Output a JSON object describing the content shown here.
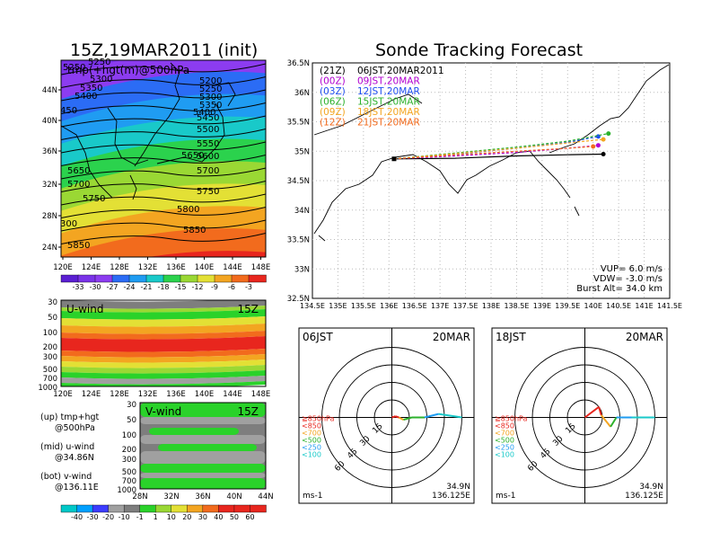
{
  "colors": {
    "shading": [
      "#5b1fd2",
      "#7a33e8",
      "#8c3cf0",
      "#2b6cf5",
      "#1f9cf2",
      "#19c9c9",
      "#2bd24d",
      "#9ad834",
      "#e3e035",
      "#f3a521",
      "#f26b1d",
      "#e8261e"
    ],
    "wind_shading": [
      "#00c8c8",
      "#00a0ff",
      "#3c3cff",
      "#a0a0a0",
      "#7e7e7e",
      "#2ad22a",
      "#9ad834",
      "#e3e035",
      "#f3a521",
      "#f26b1d",
      "#e8261e"
    ],
    "tracks": [
      "#000000",
      "#b100d0",
      "#1f4ff0",
      "#2bb12b",
      "#f3a521",
      "#f26b1d"
    ],
    "hodo_layers": [
      "#e8261e",
      "#f3a521",
      "#2bb12b",
      "#1f9cf2",
      "#19c9c9"
    ]
  },
  "upper_map": {
    "title": "15Z,19MAR2011 (init)",
    "overlay_label": "tmp(+hgt(m)@500hPa",
    "lon_ticks": [
      "120E",
      "124E",
      "128E",
      "132E",
      "136E",
      "140E",
      "144E",
      "148E"
    ],
    "lat_ticks": [
      "44N",
      "40N",
      "36N",
      "32N",
      "28N",
      "24N"
    ],
    "contour_labels": [
      "5250",
      "5250",
      "5300",
      "5350",
      "5400",
      "450",
      "5200",
      "5250",
      "5300",
      "5350",
      "5400",
      "5450",
      "5500",
      "5550",
      "5600",
      "5650",
      "5650",
      "5700",
      "5700",
      "5750",
      "5750",
      "5800",
      "300",
      "5850",
      "5850"
    ],
    "colorbar_labels": [
      "-33",
      "-30",
      "-27",
      "-24",
      "-21",
      "-18",
      "-15",
      "-12",
      "-9",
      "-6",
      "-3"
    ]
  },
  "mid_map": {
    "label": "U-wind",
    "time": "15Z",
    "y_ticks": [
      "30",
      "50",
      "100",
      "200",
      "300",
      "500",
      "700",
      "1000"
    ],
    "x_ticks": [
      "120E",
      "124E",
      "128E",
      "132E",
      "136E",
      "140E",
      "144E",
      "148E"
    ]
  },
  "bot_map": {
    "label": "V-wind",
    "time": "15Z",
    "y_ticks": [
      "30",
      "50",
      "100",
      "200",
      "300",
      "500",
      "700",
      "1000"
    ],
    "x_ticks": [
      "28N",
      "32N",
      "36N",
      "40N",
      "44N"
    ],
    "colorbar_labels": [
      "-40",
      "-30",
      "-20",
      "-10",
      "-1",
      "1",
      "10",
      "20",
      "30",
      "40",
      "50",
      "60"
    ]
  },
  "legend": {
    "up": "(up) tmp+hgt",
    "up2": "@500hPa",
    "mid": "(mid) u-wind",
    "mid2": "@34.86N",
    "bot": "(bot) v-wind",
    "bot2": "@136.11E"
  },
  "tracking": {
    "title": "Sonde Tracking Forecast",
    "lat_ticks": [
      "36.5N",
      "36N",
      "35.5N",
      "35N",
      "34.5N",
      "34N",
      "33.5N",
      "33N",
      "32.5N"
    ],
    "lon_ticks": [
      "134.5E",
      "135E",
      "135.5E",
      "136E",
      "136.5E",
      "137E",
      "137.5E",
      "138E",
      "138.5E",
      "139E",
      "139.5E",
      "140E",
      "140.5E",
      "141E",
      "141.5E"
    ],
    "runs": [
      {
        "code": "(21Z)",
        "time": "06JST,20MAR2011"
      },
      {
        "code": "(00Z)",
        "time": "09JST,20MAR"
      },
      {
        "code": "(03Z)",
        "time": "12JST,20MAR"
      },
      {
        "code": "(06Z)",
        "time": "15JST,20MAR"
      },
      {
        "code": "(09Z)",
        "time": "18JST,20MAR"
      },
      {
        "code": "(12Z)",
        "time": "21JST,20MAR"
      }
    ],
    "vup": "VUP=  6.0  m/s",
    "vdw": "VDW=  -3.0  m/s",
    "burst": "Burst Alt=  34.0  km"
  },
  "hodo_left": {
    "time": "06JST",
    "date": "20MAR",
    "rings": [
      "15",
      "30",
      "45",
      "60"
    ],
    "layers": [
      "≧850hPa",
      "<850",
      "<700",
      "<500",
      "<250",
      "<100"
    ],
    "units": "ms-1",
    "lat": "34.9N",
    "lon": "136.125E"
  },
  "hodo_right": {
    "time": "18JST",
    "date": "20MAR",
    "rings": [
      "15",
      "30",
      "45",
      "60"
    ],
    "layers": [
      "≧850hPa",
      "<850",
      "<700",
      "<500",
      "<250",
      "<100"
    ],
    "units": "ms-1",
    "lat": "34.9N",
    "lon": "136.125E"
  },
  "chart_data": [
    {
      "type": "heatmap",
      "title": "15Z,19MAR2011 (init)",
      "subtitle": "tmp(+hgt(m)@500hPa",
      "xlim": [
        120,
        150
      ],
      "ylim": [
        22,
        47
      ],
      "colorbar": [
        -33,
        -30,
        -27,
        -24,
        -21,
        -18,
        -15,
        -12,
        -9,
        -6,
        -3
      ],
      "contours": [
        5200,
        5250,
        5300,
        5350,
        5400,
        5450,
        5500,
        5550,
        5600,
        5650,
        5700,
        5750,
        5800,
        5850
      ]
    },
    {
      "type": "heatmap",
      "title": "U-wind",
      "x_range": [
        120,
        150
      ],
      "y_levels": [
        30,
        50,
        100,
        200,
        300,
        500,
        700,
        1000
      ]
    },
    {
      "type": "heatmap",
      "title": "V-wind",
      "x_range": [
        28,
        44
      ],
      "y_levels": [
        30,
        50,
        100,
        200,
        300,
        500,
        700,
        1000
      ],
      "colorbar": [
        -40,
        -30,
        -20,
        -10,
        -1,
        1,
        10,
        20,
        30,
        40,
        50,
        60
      ]
    },
    {
      "type": "line",
      "title": "Sonde Tracking Forecast",
      "xlim": [
        134.5,
        141.5
      ],
      "ylim": [
        32.5,
        36.5
      ],
      "launch": [
        136.1,
        34.87
      ],
      "series": [
        {
          "name": "(21Z) 06JST,20MAR2011",
          "x": [
            136.1,
            137.3,
            138.5,
            139.5,
            140.2
          ],
          "y": [
            34.87,
            34.88,
            34.92,
            34.94,
            34.95
          ]
        },
        {
          "name": "(00Z) 09JST,20MAR",
          "x": [
            136.1,
            137.3,
            138.5,
            139.5,
            140.1
          ],
          "y": [
            34.87,
            34.92,
            34.98,
            35.05,
            35.1
          ]
        },
        {
          "name": "(03Z) 12JST,20MAR",
          "x": [
            136.1,
            137.3,
            138.5,
            139.5,
            140.1
          ],
          "y": [
            34.87,
            34.95,
            35.05,
            35.15,
            35.25
          ]
        },
        {
          "name": "(06Z) 15JST,20MAR",
          "x": [
            136.1,
            137.3,
            138.5,
            139.5,
            140.3
          ],
          "y": [
            34.87,
            34.97,
            35.07,
            35.17,
            35.3
          ]
        },
        {
          "name": "(09Z) 18JST,20MAR",
          "x": [
            136.1,
            137.3,
            138.5,
            139.5,
            140.2
          ],
          "y": [
            34.87,
            34.96,
            35.05,
            35.14,
            35.2
          ]
        },
        {
          "name": "(12Z) 21JST,20MAR",
          "x": [
            136.1,
            137.3,
            138.5,
            139.5,
            140.0
          ],
          "y": [
            34.87,
            34.94,
            35.0,
            35.05,
            35.08
          ]
        }
      ]
    },
    {
      "type": "line",
      "title": "06JST 20MAR",
      "rings": [
        15,
        30,
        45,
        60
      ],
      "points_u": [
        0,
        3,
        6,
        10,
        17,
        28,
        40,
        60
      ],
      "points_v": [
        0,
        1,
        0,
        -2,
        0,
        0,
        3,
        0
      ]
    },
    {
      "type": "line",
      "title": "18JST 20MAR",
      "rings": [
        15,
        30,
        45,
        60
      ],
      "points_u": [
        0,
        12,
        14,
        22,
        27,
        40,
        60
      ],
      "points_v": [
        0,
        9,
        2,
        -8,
        0,
        0,
        0
      ]
    }
  ]
}
